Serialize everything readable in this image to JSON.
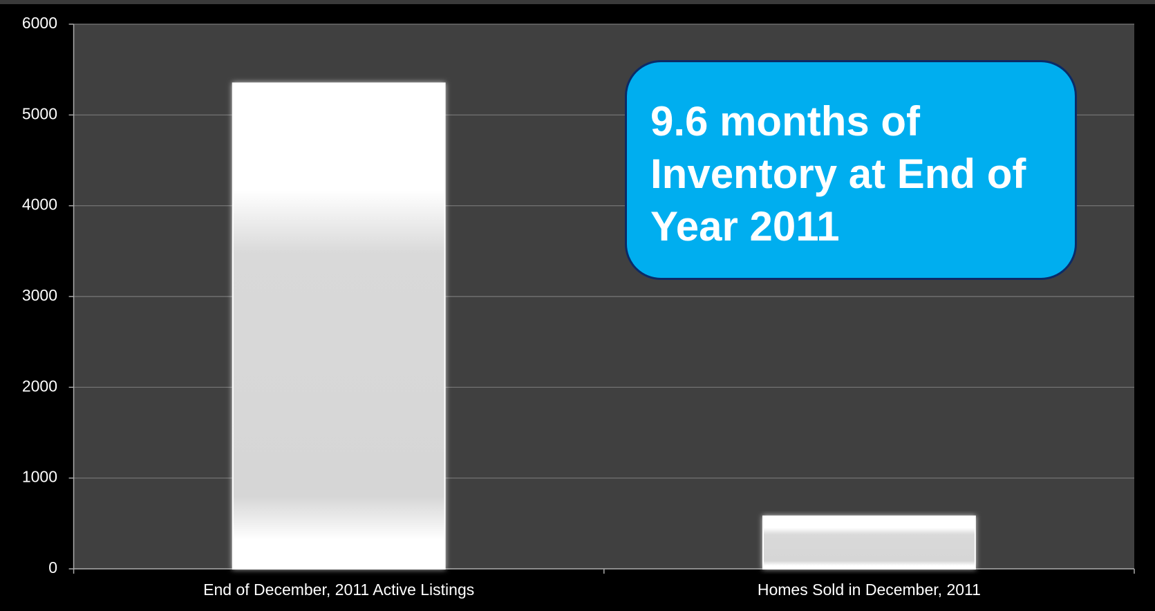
{
  "chart_data": {
    "type": "bar",
    "categories": [
      "End of December, 2011 Active Listings",
      "Homes Sold in December, 2011"
    ],
    "values": [
      5350,
      580
    ],
    "color": "#ffffff",
    "ylim": [
      0,
      6000
    ],
    "yticks": [
      0,
      1000,
      2000,
      3000,
      4000,
      5000,
      6000
    ],
    "grid": true,
    "annotation": "9.6 months of Inventory at End of Year 2011"
  }
}
